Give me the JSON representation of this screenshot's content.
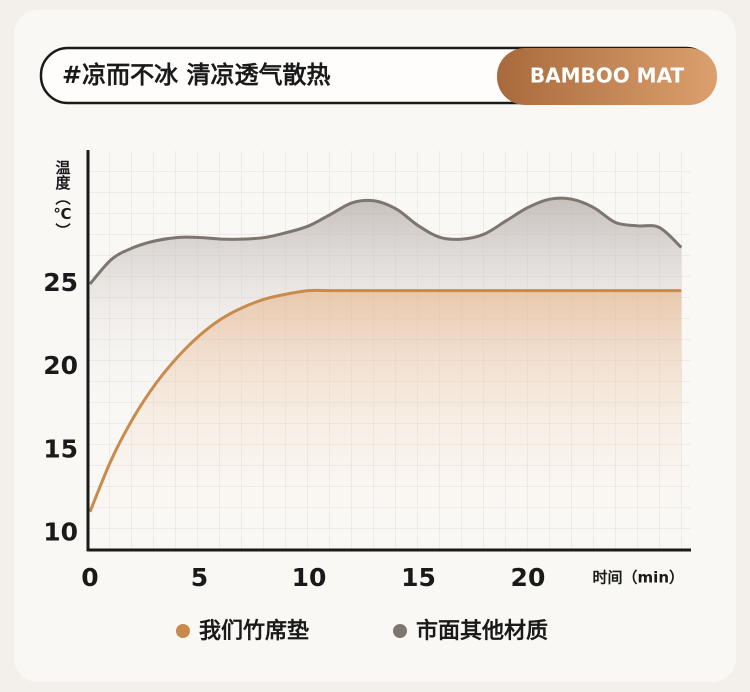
{
  "chart_data": {
    "type": "line",
    "title": "#凉而不冰 清凉透气散热",
    "badge": "BAMBOO MAT",
    "y_label": "温度（℃）",
    "x_label": "时间（min）",
    "x": [
      0,
      1,
      2,
      3,
      4,
      5,
      6,
      7,
      8,
      9,
      10,
      11,
      12,
      13,
      14,
      15,
      16,
      17,
      18,
      19,
      20,
      21,
      22,
      23,
      24,
      25,
      26,
      27
    ],
    "series": [
      {
        "name": "我们竹席垫",
        "color": "#c98a4e",
        "values": [
          11.3,
          14.5,
          17,
          19,
          20.6,
          21.9,
          22.9,
          23.6,
          24.1,
          24.4,
          24.6,
          24.6,
          24.6,
          24.6,
          24.6,
          24.6,
          24.6,
          24.6,
          24.6,
          24.6,
          24.6,
          24.6,
          24.6,
          24.6,
          24.6,
          24.6,
          24.6,
          24.6
        ]
      },
      {
        "name": "市面其他材质",
        "color": "#7d7570",
        "values": [
          25,
          26.5,
          27.2,
          27.6,
          27.8,
          27.8,
          27.7,
          27.7,
          27.8,
          28.1,
          28.5,
          29.2,
          29.9,
          30.0,
          29.5,
          28.5,
          27.8,
          27.7,
          28.0,
          28.8,
          29.6,
          30.1,
          30.1,
          29.6,
          28.7,
          28.5,
          28.4,
          27.2
        ]
      }
    ],
    "xlim": [
      0,
      27.4
    ],
    "ylim": [
      9,
      33
    ],
    "xticks": [
      0,
      5,
      10,
      15,
      20
    ],
    "yticks": [
      10,
      15,
      20,
      25
    ]
  }
}
